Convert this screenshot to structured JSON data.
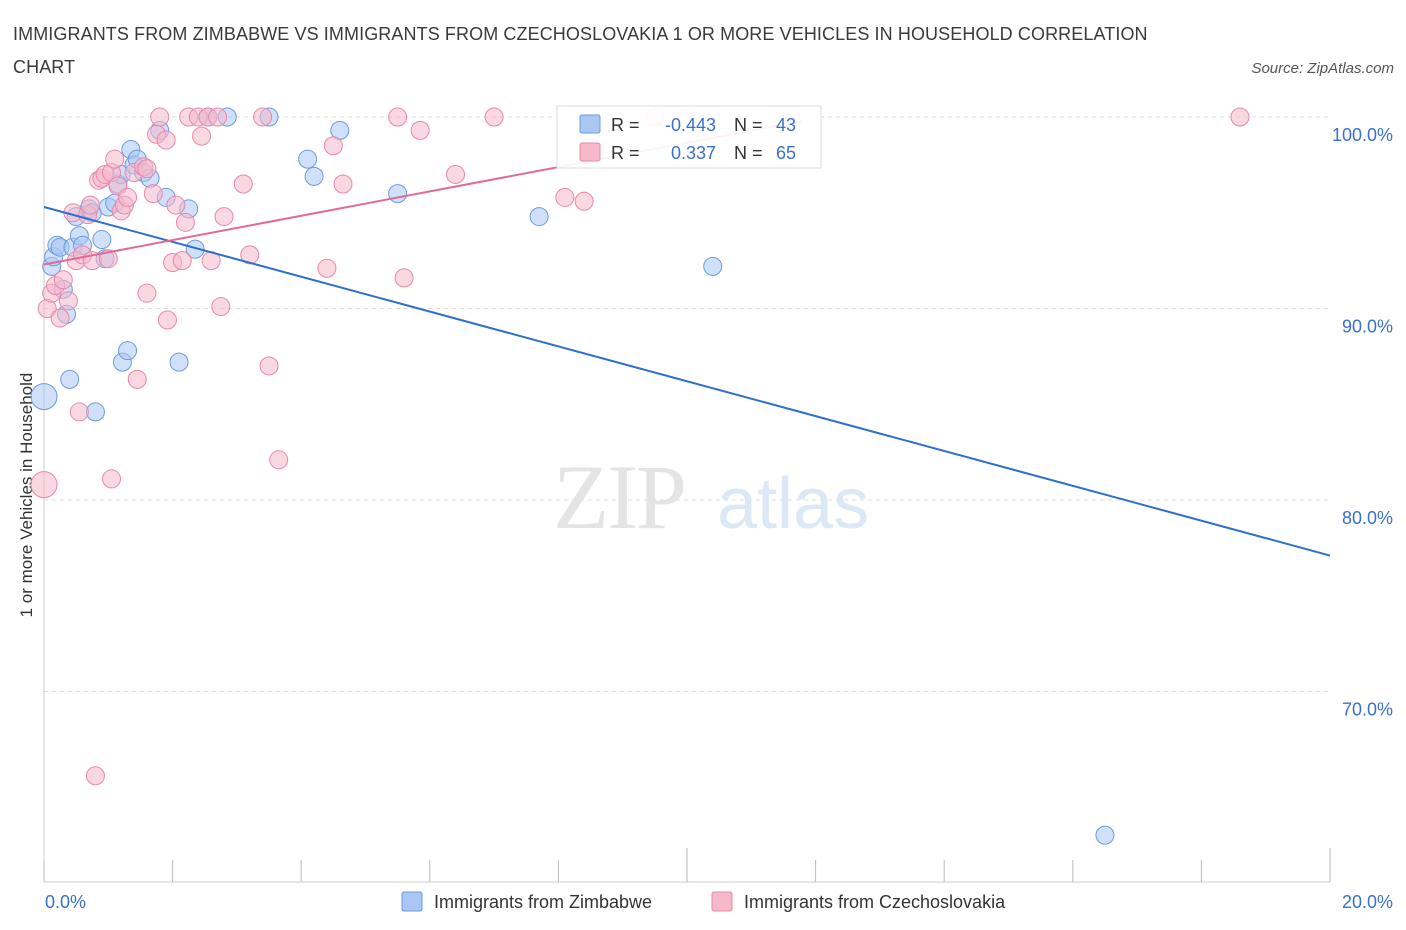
{
  "title": "IMMIGRANTS FROM ZIMBABWE VS IMMIGRANTS FROM CZECHOSLOVAKIA 1 OR MORE VEHICLES IN HOUSEHOLD CORRELATION CHART",
  "source": "Source: ZipAtlas.com",
  "watermark": {
    "zip": "ZIP",
    "atlas": "atlas"
  },
  "colors": {
    "blue_fill": "#a9c7f2",
    "blue_stroke": "#6b9be0",
    "blue_line": "#2f6fcc",
    "pink_fill": "#f6b8cb",
    "pink_stroke": "#e888a8",
    "pink_line": "#e06b96",
    "tick_label": "#3a72c9",
    "grid": "#dddddd"
  },
  "legend": {
    "r_label": "R =",
    "n_label": "N =",
    "rows": [
      {
        "series": "zimbabwe",
        "r": "-0.443",
        "n": "43"
      },
      {
        "series": "czechoslovakia",
        "r": "0.337",
        "n": "65"
      }
    ]
  },
  "chart_data": {
    "type": "scatter",
    "title": "IMMIGRANTS FROM ZIMBABWE VS IMMIGRANTS FROM CZECHOSLOVAKIA 1 OR MORE VEHICLES IN HOUSEHOLD CORRELATION CHART",
    "xlabel": "",
    "ylabel": "1 or more Vehicles in Household",
    "xlim": [
      0,
      20
    ],
    "ylim": [
      60,
      100
    ],
    "x_tick_labels": [
      "0.0%",
      "20.0%"
    ],
    "y_ticks": [
      {
        "value": 100,
        "label": "100.0%"
      },
      {
        "value": 90,
        "label": "90.0%"
      },
      {
        "value": 80,
        "label": "80.0%"
      },
      {
        "value": 70,
        "label": "70.0%"
      }
    ],
    "series": [
      {
        "name": "Immigrants from Zimbabwe",
        "color": "blue",
        "trend": {
          "x": [
            0,
            20
          ],
          "y": [
            95.3,
            77.1
          ]
        },
        "points": [
          [
            0.0,
            85.4
          ],
          [
            0.12,
            92.2
          ],
          [
            0.15,
            92.7
          ],
          [
            0.2,
            93.3
          ],
          [
            0.25,
            93.2
          ],
          [
            0.3,
            91.0
          ],
          [
            0.35,
            89.7
          ],
          [
            0.4,
            86.3
          ],
          [
            0.45,
            93.2
          ],
          [
            0.5,
            94.8
          ],
          [
            0.55,
            93.8
          ],
          [
            0.6,
            93.3
          ],
          [
            0.7,
            95.2
          ],
          [
            0.75,
            95.0
          ],
          [
            0.8,
            84.6
          ],
          [
            0.9,
            93.6
          ],
          [
            0.95,
            92.6
          ],
          [
            1.0,
            95.3
          ],
          [
            1.1,
            95.5
          ],
          [
            1.15,
            96.5
          ],
          [
            1.2,
            97.0
          ],
          [
            1.22,
            87.2
          ],
          [
            1.3,
            87.8
          ],
          [
            1.35,
            98.3
          ],
          [
            1.4,
            97.5
          ],
          [
            1.45,
            97.8
          ],
          [
            1.55,
            97.1
          ],
          [
            1.65,
            96.8
          ],
          [
            1.8,
            99.3
          ],
          [
            1.9,
            95.8
          ],
          [
            2.1,
            87.2
          ],
          [
            2.25,
            95.2
          ],
          [
            2.35,
            93.1
          ],
          [
            2.55,
            100.0
          ],
          [
            2.85,
            100.0
          ],
          [
            3.5,
            100.0
          ],
          [
            4.1,
            97.8
          ],
          [
            4.2,
            96.9
          ],
          [
            4.6,
            99.3
          ],
          [
            5.5,
            96.0
          ],
          [
            7.7,
            94.8
          ],
          [
            10.4,
            92.2
          ],
          [
            16.5,
            62.5
          ]
        ]
      },
      {
        "name": "Immigrants from Czechoslovakia",
        "color": "pink",
        "trend": {
          "x": [
            0,
            11.8
          ],
          "y": [
            92.3,
            99.8
          ]
        },
        "points": [
          [
            0.0,
            80.8
          ],
          [
            0.05,
            90.0
          ],
          [
            0.12,
            90.8
          ],
          [
            0.18,
            91.2
          ],
          [
            0.25,
            89.5
          ],
          [
            0.3,
            91.5
          ],
          [
            0.38,
            90.4
          ],
          [
            0.45,
            95.0
          ],
          [
            0.5,
            92.5
          ],
          [
            0.55,
            84.6
          ],
          [
            0.6,
            92.8
          ],
          [
            0.68,
            94.9
          ],
          [
            0.72,
            95.4
          ],
          [
            0.75,
            92.5
          ],
          [
            0.8,
            65.6
          ],
          [
            0.85,
            96.7
          ],
          [
            0.9,
            96.8
          ],
          [
            0.95,
            97.0
          ],
          [
            1.0,
            92.6
          ],
          [
            1.05,
            97.1
          ],
          [
            1.05,
            81.1
          ],
          [
            1.1,
            97.8
          ],
          [
            1.15,
            96.4
          ],
          [
            1.2,
            95.1
          ],
          [
            1.25,
            95.4
          ],
          [
            1.3,
            95.8
          ],
          [
            1.4,
            97.1
          ],
          [
            1.45,
            86.3
          ],
          [
            1.55,
            97.4
          ],
          [
            1.6,
            97.3
          ],
          [
            1.6,
            90.8
          ],
          [
            1.7,
            96.0
          ],
          [
            1.75,
            99.1
          ],
          [
            1.8,
            100.0
          ],
          [
            1.9,
            98.8
          ],
          [
            1.92,
            89.4
          ],
          [
            2.0,
            92.4
          ],
          [
            2.05,
            95.4
          ],
          [
            2.15,
            92.5
          ],
          [
            2.2,
            94.5
          ],
          [
            2.25,
            100.0
          ],
          [
            2.4,
            100.0
          ],
          [
            2.45,
            99.0
          ],
          [
            2.55,
            100.0
          ],
          [
            2.6,
            92.5
          ],
          [
            2.7,
            100.0
          ],
          [
            2.75,
            90.1
          ],
          [
            2.8,
            94.8
          ],
          [
            3.1,
            96.5
          ],
          [
            3.2,
            92.8
          ],
          [
            3.4,
            100.0
          ],
          [
            3.5,
            87.0
          ],
          [
            3.65,
            82.1
          ],
          [
            4.4,
            92.1
          ],
          [
            4.5,
            98.5
          ],
          [
            4.65,
            96.5
          ],
          [
            5.5,
            100.0
          ],
          [
            5.6,
            91.6
          ],
          [
            5.85,
            99.3
          ],
          [
            6.4,
            97.0
          ],
          [
            7.0,
            100.0
          ],
          [
            8.1,
            95.8
          ],
          [
            8.4,
            95.6
          ],
          [
            9.5,
            100.0
          ],
          [
            18.6,
            100.0
          ]
        ]
      }
    ]
  },
  "bottom_legend": [
    {
      "series": "zimbabwe",
      "label": "Immigrants from Zimbabwe"
    },
    {
      "series": "czechoslovakia",
      "label": "Immigrants from Czechoslovakia"
    }
  ]
}
